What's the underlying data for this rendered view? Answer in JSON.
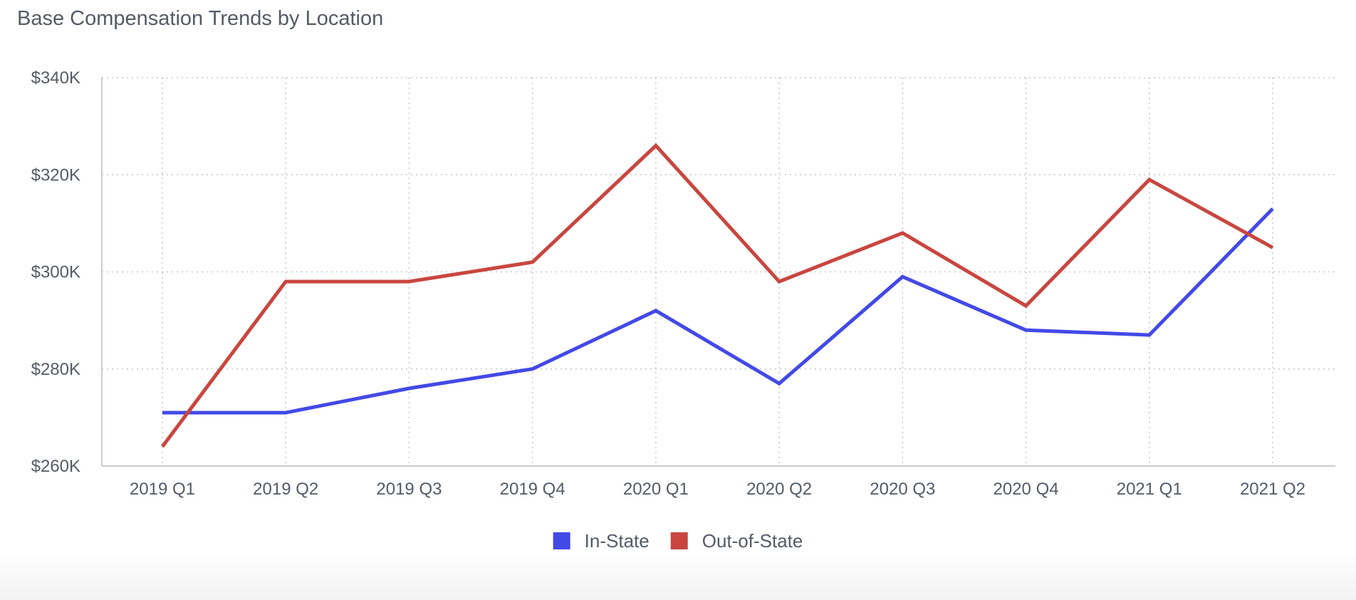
{
  "chart_data": {
    "type": "line",
    "title": "Base Compensation Trends by Location",
    "xlabel": "",
    "ylabel": "",
    "categories": [
      "2019 Q1",
      "2019 Q2",
      "2019 Q3",
      "2019 Q4",
      "2020 Q1",
      "2020 Q2",
      "2020 Q3",
      "2020 Q4",
      "2021 Q1",
      "2021 Q2"
    ],
    "series": [
      {
        "name": "In-State",
        "color": "#4349e6",
        "values": [
          271,
          271,
          276,
          280,
          292,
          277,
          299,
          288,
          287,
          313
        ]
      },
      {
        "name": "Out-of-State",
        "color": "#c9463f",
        "values": [
          264,
          298,
          298,
          302,
          326,
          298,
          308,
          293,
          319,
          305
        ]
      }
    ],
    "value_unit": "thousand USD",
    "ylim": [
      260,
      340
    ],
    "yticks": [
      260,
      280,
      300,
      320,
      340
    ],
    "ytick_labels": [
      "$260K",
      "$280K",
      "$300K",
      "$320K",
      "$340K"
    ],
    "grid": true,
    "legend_position": "bottom-center"
  }
}
